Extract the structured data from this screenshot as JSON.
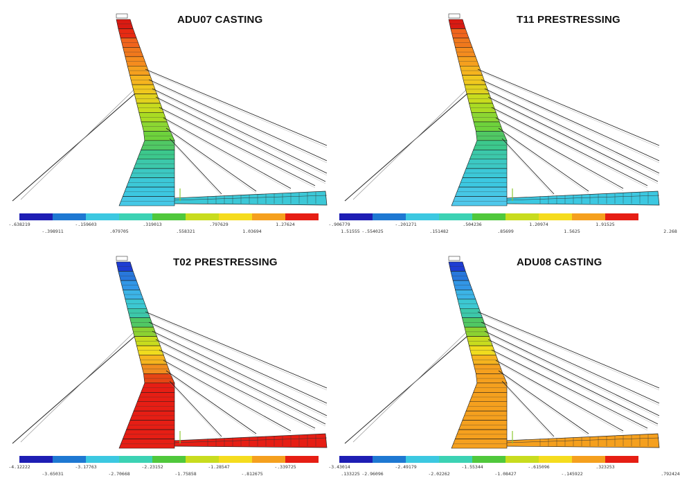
{
  "panels": [
    {
      "title": "ADU07 CASTING",
      "segment_colors": [
        "#d91a12",
        "#e82a12",
        "#f0641c",
        "#f0781c",
        "#f58c1e",
        "#f5a01e",
        "#f5b41e",
        "#f0c81e",
        "#e1d21e",
        "#c8dc1e",
        "#aadc23",
        "#8cd732",
        "#6ed23c",
        "#50c864",
        "#3cc88c",
        "#3cc8aa",
        "#3cc8c3",
        "#3cc8d7",
        "#3cc8e1",
        "#46c8e6"
      ],
      "legend": {
        "colors": [
          "#1e1eb4",
          "#1e78d2",
          "#3cc8e1",
          "#3cd2b4",
          "#50c83c",
          "#c8dc1e",
          "#f5dc1e",
          "#f5a01e",
          "#e61e14"
        ],
        "top_labels": [
          "-.638219",
          "-.159603",
          ".319013",
          ".797629",
          "1.27624"
        ],
        "bottom_labels": [
          "-.398911",
          ".079705",
          ".558321",
          "1.03694",
          "1.51555"
        ]
      }
    },
    {
      "title": "T11 PRESTRESSING",
      "segment_colors": [
        "#d91a12",
        "#f0641c",
        "#f0781c",
        "#f58c1e",
        "#f5a01e",
        "#f5b41e",
        "#f0c81e",
        "#e1d21e",
        "#c8dc1e",
        "#aadc23",
        "#8cd732",
        "#6ed23c",
        "#50c864",
        "#3cc88c",
        "#3cc8aa",
        "#3cc8c3",
        "#3cc8d7",
        "#3cc8e1",
        "#46c8e6",
        "#50c8eb"
      ],
      "legend": {
        "colors": [
          "#1e1eb4",
          "#1e78d2",
          "#3cc8e1",
          "#3cd2b4",
          "#50c83c",
          "#c8dc1e",
          "#f5dc1e",
          "#f5a01e",
          "#e61e14"
        ],
        "top_labels": [
          "-.906779",
          "-.201271",
          ".504236",
          "1.20974",
          "1.91525"
        ],
        "bottom_labels": [
          "-.554025",
          ".151482",
          ".85699",
          "1.5625",
          "2.268"
        ]
      }
    },
    {
      "title": "T02 PRESTRESSING",
      "segment_colors": [
        "#1e3cd2",
        "#2878dc",
        "#3296e6",
        "#3cb4e6",
        "#3cc8d2",
        "#3cc8aa",
        "#50c864",
        "#8cd232",
        "#c8dc1e",
        "#f0dc1e",
        "#f5b41e",
        "#f08c1e",
        "#e64614",
        "#e61e14",
        "#e61e14",
        "#e61e14",
        "#e61e14",
        "#e61e14",
        "#e61e14",
        "#e61e14"
      ],
      "legend": {
        "colors": [
          "#1e1eb4",
          "#1e78d2",
          "#3cc8e1",
          "#3cd2b4",
          "#50c83c",
          "#c8dc1e",
          "#f5dc1e",
          "#f5a01e",
          "#e61e14"
        ],
        "top_labels": [
          "-4.12222",
          "-3.17763",
          "-2.23152",
          "-1.28547",
          "-.339725"
        ],
        "bottom_labels": [
          "-3.65031",
          "-2.70668",
          "-1.75858",
          "-.812675",
          ".133225"
        ]
      }
    },
    {
      "title": "ADU08 CASTING",
      "segment_colors": [
        "#1e3cd2",
        "#2878dc",
        "#3296e6",
        "#3cb4e6",
        "#3cc8d2",
        "#3cc8aa",
        "#50c864",
        "#8cd232",
        "#c8dc1e",
        "#f0dc1e",
        "#f5b41e",
        "#f5a01e",
        "#f5a01e",
        "#f5a01e",
        "#f5a01e",
        "#f5a01e",
        "#f5a01e",
        "#f5a01e",
        "#f5a01e",
        "#f5a01e"
      ],
      "legend": {
        "colors": [
          "#1e1eb4",
          "#1e78d2",
          "#3cc8e1",
          "#3cd2b4",
          "#50c83c",
          "#c8dc1e",
          "#f5dc1e",
          "#f5a01e",
          "#e61e14"
        ],
        "top_labels": [
          "-3.43014",
          "-2.49179",
          "-1.55344",
          "-.615096",
          ".323253"
        ],
        "bottom_labels": [
          "-2.96096",
          "-2.02262",
          "-1.08427",
          "-.145922",
          ".792424"
        ]
      }
    }
  ]
}
